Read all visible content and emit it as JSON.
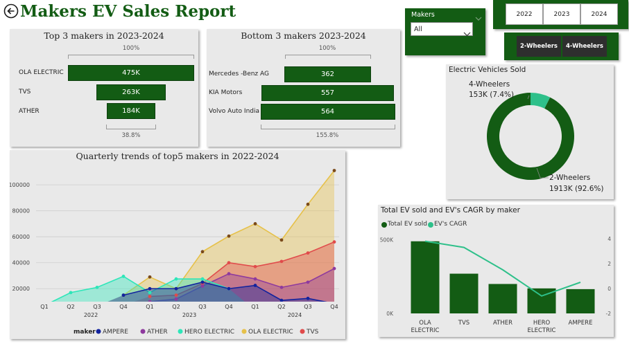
{
  "header": {
    "title": "Makers EV Sales Report",
    "back_icon": "circle-arrow-left-icon"
  },
  "makers_slicer": {
    "label": "Makers",
    "value": "All"
  },
  "year_slicer": {
    "years": [
      "2022",
      "2023",
      "2024"
    ]
  },
  "vehicle_slicer": {
    "types": [
      "2-Wheelers",
      "4-Wheelers"
    ]
  },
  "top3": {
    "title": "Top 3 makers in 2023-2024",
    "top_pct": "100%",
    "bottom_pct": "38.8%",
    "rows": [
      {
        "label": "OLA ELECTRIC",
        "value_label": "475K",
        "value": 475
      },
      {
        "label": "TVS",
        "value_label": "263K",
        "value": 263
      },
      {
        "label": "ATHER",
        "value_label": "184K",
        "value": 184
      }
    ]
  },
  "bottom3": {
    "title": "Bottom 3 makers 2023-2024",
    "top_pct": "100%",
    "bottom_pct": "155.8%",
    "rows": [
      {
        "label": "Mercedes -Benz AG",
        "value_label": "362",
        "value": 362
      },
      {
        "label": "KIA Motors",
        "value_label": "557",
        "value": 557
      },
      {
        "label": "Volvo Auto India",
        "value_label": "564",
        "value": 564
      }
    ]
  },
  "donut": {
    "title": "Electric Vehicles Sold",
    "segments": [
      {
        "name": "4-Wheelers",
        "label": "153K (7.4%)",
        "value": 153,
        "color": "#2ec08a"
      },
      {
        "name": "2-Wheelers",
        "label": "1913K (92.6%)",
        "value": 1913,
        "color": "#135c14"
      }
    ]
  },
  "area_chart": {
    "title": "Quarterly trends of top5 makers in 2022-2024",
    "legend_title": "maker",
    "chart_data": {
      "type": "area",
      "title": "Quarterly trends of top5 makers in 2022-2024",
      "x_quarters": [
        "Q1",
        "Q2",
        "Q3",
        "Q4",
        "Q1",
        "Q2",
        "Q3",
        "Q4",
        "Q1",
        "Q2",
        "Q3",
        "Q4"
      ],
      "x_years": [
        "2022",
        "2023",
        "2024"
      ],
      "y_ticks": [
        "20000",
        "40000",
        "60000",
        "80000",
        "100000"
      ],
      "ylim": [
        10000,
        115000
      ],
      "series": [
        {
          "name": "AMPERE",
          "color": "#12239e",
          "values": [
            null,
            null,
            null,
            15000,
            20000,
            20000,
            25000,
            20000,
            22500,
            11000,
            12500,
            8500
          ]
        },
        {
          "name": "ATHER",
          "color": "#8e3a9e",
          "values": [
            null,
            null,
            null,
            null,
            10000,
            12000,
            22000,
            31500,
            27500,
            21000,
            25000,
            35500
          ]
        },
        {
          "name": "HERO ELECTRIC",
          "color": "#2ee6b9",
          "values": [
            7000,
            17000,
            21000,
            29500,
            17000,
            27500,
            27500,
            20000,
            null,
            null,
            null,
            null
          ]
        },
        {
          "name": "OLA ELECTRIC",
          "color": "#e6c14a",
          "values": [
            null,
            null,
            null,
            15000,
            29000,
            20000,
            48500,
            60500,
            70000,
            57500,
            85000,
            111000
          ]
        },
        {
          "name": "TVS",
          "color": "#e04b4b",
          "values": [
            null,
            null,
            null,
            null,
            14000,
            15000,
            24000,
            40000,
            37000,
            41000,
            47500,
            56000
          ]
        }
      ]
    }
  },
  "combo_chart": {
    "title": "Total EV sold and EV's CAGR by maker",
    "legend": [
      "Total EV sold",
      "EV's CAGR"
    ],
    "colors": {
      "bar": "#135c14",
      "line": "#2ec08a"
    },
    "chart_data": {
      "type": "bar",
      "title": "Total EV sold and EV's CAGR by maker",
      "categories": [
        "OLA ELECTRIC",
        "TVS",
        "ATHER",
        "HERO ELECTRIC",
        "AMPERE"
      ],
      "category_lines": [
        [
          "OLA",
          "ELECTRIC"
        ],
        [
          "TVS"
        ],
        [
          "ATHER"
        ],
        [
          "HERO",
          "ELECTRIC"
        ],
        [
          "AMPERE"
        ]
      ],
      "series": [
        {
          "name": "Total EV sold",
          "values": [
            490000,
            270000,
            200000,
            170000,
            165000
          ]
        },
        {
          "name": "EV's CAGR",
          "values": [
            3.8,
            3.3,
            1.5,
            -0.6,
            0.5
          ]
        }
      ],
      "y_left_ticks": [
        "0K",
        "500K"
      ],
      "y_left_lim": [
        0,
        550000
      ],
      "y_right_ticks": [
        "-2",
        "0",
        "2",
        "4"
      ],
      "y_right_lim": [
        -2,
        4.5
      ]
    }
  }
}
